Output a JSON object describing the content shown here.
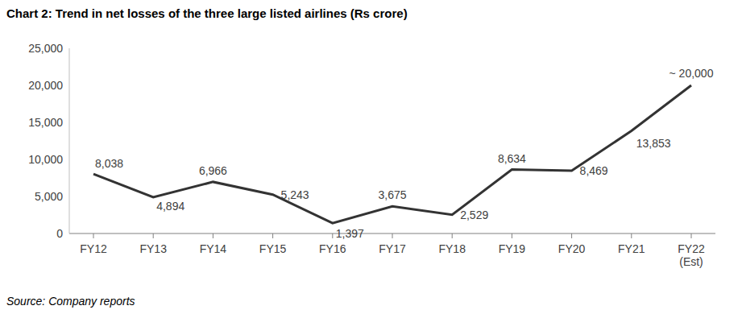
{
  "chart_data": {
    "type": "line",
    "title": "Chart 2: Trend in net losses of the three large listed airlines (Rs crore)",
    "source": "Source: Company reports",
    "categories": [
      "FY12",
      "FY13",
      "FY14",
      "FY15",
      "FY16",
      "FY17",
      "FY18",
      "FY19",
      "FY20",
      "FY21",
      "FY22 (Est)"
    ],
    "values": [
      8038,
      4894,
      6966,
      5243,
      1397,
      3675,
      2529,
      8634,
      8469,
      13853,
      20000
    ],
    "value_labels": [
      "8,038",
      "4,894",
      "6,966",
      "5,243",
      "1,397",
      "3,675",
      "2,529",
      "8,634",
      "8,469",
      "13,853",
      "~ 20,000"
    ],
    "color": "#333333",
    "ylim": [
      0,
      25000
    ],
    "yticks": [
      0,
      {
        "value": 5000,
        "label": "5,000"
      },
      {
        "value": 10000,
        "label": "10,000"
      },
      {
        "value": 15000,
        "label": "15,000"
      },
      {
        "value": 20000,
        "label": "20,000"
      },
      {
        "value": 25000,
        "label": "25,000"
      }
    ],
    "grid": false,
    "data_labels": true
  }
}
